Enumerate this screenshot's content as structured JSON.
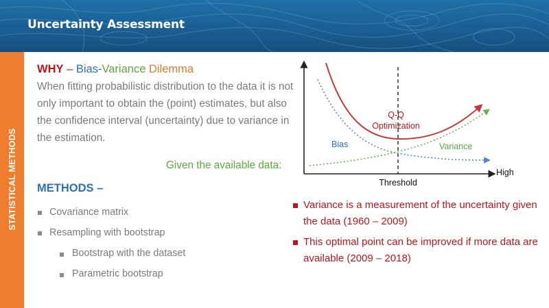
{
  "header": {
    "title": "Uncertainty Assessment"
  },
  "sidebar": {
    "label": "STATISTICAL METHODS"
  },
  "why": {
    "word": "WHY",
    "dash": " – ",
    "bias": "Bias",
    "hyphen": "-",
    "variance": "Variance",
    "dilemma": " Dilemma",
    "body": "When fitting probabilistic distribution to the data it is not only important to obtain the (point) estimates, but also the confidence interval (uncertainty) due to variance in the estimation.",
    "given": "Given the available data:"
  },
  "methods": {
    "heading": "METHODS –",
    "items": [
      {
        "label": "Covariance matrix"
      },
      {
        "label": "Resampling with bootstrap"
      }
    ],
    "subitems": [
      {
        "label": "Bootstrap with the dataset"
      },
      {
        "label": "Parametric bootstrap"
      }
    ]
  },
  "notes": [
    {
      "text": "Variance is a measurement of the uncertainty given the data (1960 – 2009)"
    },
    {
      "text": "This optimal point can be improved if more data are available (2009 – 2018)"
    }
  ],
  "diagram": {
    "optimum_label_line1": "Q-Q",
    "optimum_label_line2": "Optimization",
    "bias_label": "Bias",
    "variance_label": "Variance",
    "x_axis_end_label": "High",
    "threshold_label": "Threshold"
  },
  "colors": {
    "header_blue": "#1a5f95",
    "sidebar_orange": "#ee7d2e",
    "red": "#c0151c",
    "blue": "#2e6fb6",
    "green": "#5ea640",
    "orange": "#e07b26"
  }
}
